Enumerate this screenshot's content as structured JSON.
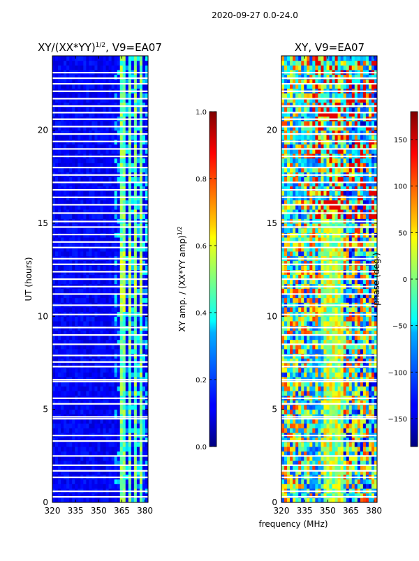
{
  "chart_data": {
    "suptitle": "2020-09-27 0.0-24.0",
    "xlabel_shared": "frequency (MHz)",
    "panels": [
      {
        "type": "heatmap",
        "title_prefix": "XY/(XX*YY)",
        "title_exp": "1/2",
        "title_suffix": ", V9=EA07",
        "ylabel": "UT (hours)",
        "xlim": [
          320,
          382
        ],
        "ylim": [
          0,
          24
        ],
        "xticks": [
          320,
          335,
          350,
          365,
          380
        ],
        "yticks": [
          0,
          5,
          10,
          15,
          20
        ],
        "colormap": "jet",
        "colorbar": {
          "label": "XY amp. / (XX*YY amp)",
          "label_exp": "1/2",
          "range": [
            0.0,
            1.0
          ],
          "ticks": [
            "0.0",
            "0.2",
            "0.4",
            "0.6",
            "0.8",
            "1.0"
          ]
        }
      },
      {
        "type": "heatmap",
        "title": "XY, V9=EA07",
        "xlim": [
          320,
          382
        ],
        "ylim": [
          0,
          24
        ],
        "xticks": [
          320,
          335,
          350,
          365,
          380
        ],
        "yticks": [
          0,
          5,
          10,
          15,
          20
        ],
        "colormap": "jet",
        "colorbar": {
          "label": "phase (deg.)",
          "range": [
            -180,
            180
          ],
          "ticks": [
            "150",
            "100",
            "50",
            "0",
            "−50",
            "−100",
            "−150"
          ]
        }
      }
    ],
    "gap_hours": [
      0.3,
      0.6,
      1.35,
      1.7,
      2.0,
      2.5,
      3.3,
      3.6,
      4.5,
      4.6,
      5.3,
      5.6,
      6.5,
      6.6,
      7.3,
      7.55,
      7.9,
      8.5,
      9.0,
      9.4,
      10.1,
      10.6,
      11.2,
      11.6,
      12.0,
      12.4,
      12.8,
      13.1,
      13.7,
      14.0,
      14.4,
      14.8,
      15.1,
      15.55,
      16.0,
      16.4,
      16.8,
      17.2,
      17.6,
      18.0,
      18.6,
      19.0,
      19.4,
      19.8,
      20.2,
      20.6,
      20.95,
      21.3,
      21.7,
      22.1,
      22.5,
      22.8,
      23.1
    ]
  }
}
